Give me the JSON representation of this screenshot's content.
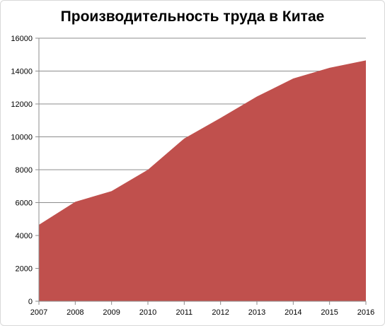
{
  "chart_data": {
    "type": "area",
    "title": "Производительность труда в Китае",
    "xlabel": "",
    "ylabel": "",
    "categories": [
      "2007",
      "2008",
      "2009",
      "2010",
      "2011",
      "2012",
      "2013",
      "2014",
      "2015",
      "2016"
    ],
    "series": [
      {
        "values": [
          4650,
          6050,
          6700,
          8000,
          9900,
          11150,
          12450,
          13550,
          14200,
          14650
        ]
      }
    ],
    "ylim": [
      0,
      16000
    ],
    "yticks": [
      0,
      2000,
      4000,
      6000,
      8000,
      10000,
      12000,
      14000,
      16000
    ],
    "grid": true,
    "legend": "none",
    "colors": {
      "area": "#c0504d",
      "grid": "#8c8c8c",
      "axis": "#8c8c8c"
    }
  }
}
